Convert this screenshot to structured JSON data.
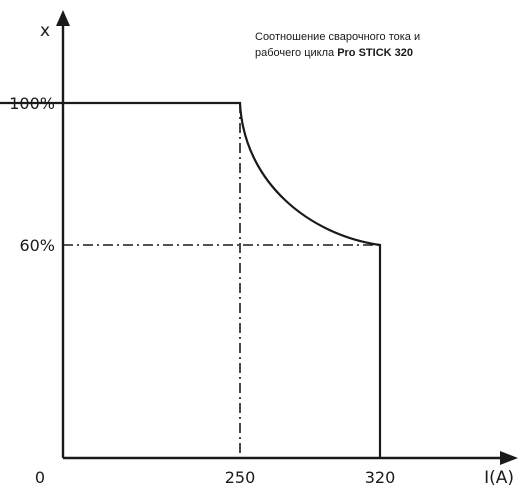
{
  "caption": {
    "line1": "Соотношение сварочного тока и",
    "line2_prefix": "рабочего цикла ",
    "line2_bold": "Pro STICK 320"
  },
  "chart_data": {
    "type": "line",
    "title": "",
    "xlabel": "I(A)",
    "ylabel": "x",
    "origin_label": "0",
    "x_ticks": [
      "250",
      "320"
    ],
    "y_ticks": [
      "60%",
      "100%"
    ],
    "xlim": [
      0,
      400
    ],
    "ylim": [
      0,
      115
    ],
    "grid": false,
    "series": [
      {
        "points": [
          [
            0,
            100
          ],
          [
            250,
            100
          ],
          [
            255,
            94
          ],
          [
            262,
            87
          ],
          [
            270,
            80
          ],
          [
            280,
            74
          ],
          [
            292,
            68
          ],
          [
            305,
            63
          ],
          [
            320,
            60
          ],
          [
            320,
            0
          ]
        ]
      }
    ],
    "reference_lines": [
      {
        "axis": "x",
        "value": 250
      },
      {
        "axis": "y",
        "value": 60
      }
    ]
  }
}
